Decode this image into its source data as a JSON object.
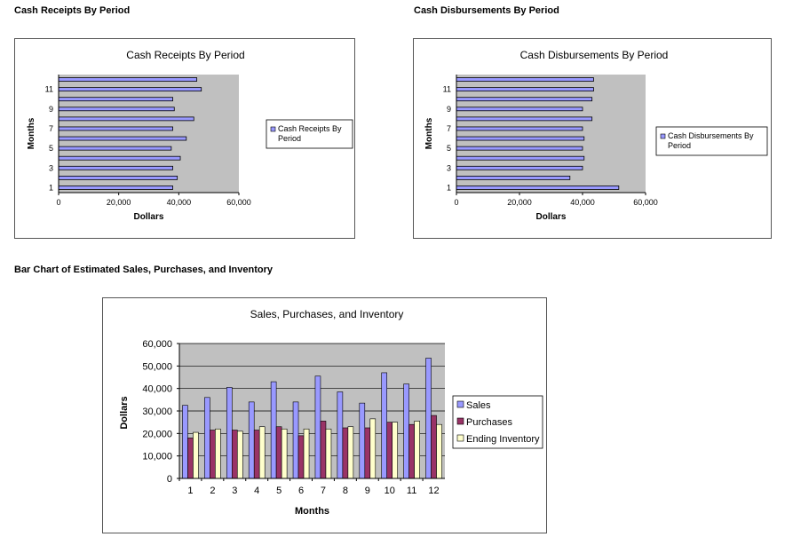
{
  "headings": {
    "receipts": "Cash Receipts By Period",
    "disbursements": "Cash Disbursements By Period",
    "sales": "Bar Chart of Estimated Sales, Purchases, and Inventory"
  },
  "colors": {
    "plot_gray": "#c0c0c0",
    "sales": "#9999ff",
    "purchases": "#993366",
    "inventory": "#ffffcc"
  },
  "chart_data": [
    {
      "id": "receipts",
      "type": "bar",
      "orientation": "horizontal",
      "title": "Cash Receipts By Period",
      "xlabel": "Dollars",
      "ylabel": "Months",
      "xlim": [
        0,
        60000
      ],
      "x_ticks": [
        "0",
        "20,000",
        "40,000",
        "60,000"
      ],
      "y_ticks": [
        "1",
        "3",
        "5",
        "7",
        "9",
        "11"
      ],
      "categories": [
        "1",
        "2",
        "3",
        "4",
        "5",
        "6",
        "7",
        "8",
        "9",
        "10",
        "11",
        "12"
      ],
      "series": [
        {
          "name": "Cash Receipts By Period",
          "color": "#9999ff",
          "values": [
            38000,
            39500,
            38000,
            40500,
            37500,
            42500,
            38000,
            45000,
            38500,
            38000,
            47500,
            46000
          ]
        }
      ],
      "legend": "right",
      "grid": false
    },
    {
      "id": "disbursements",
      "type": "bar",
      "orientation": "horizontal",
      "title": "Cash Disbursements By Period",
      "xlabel": "Dollars",
      "ylabel": "Months",
      "xlim": [
        0,
        60000
      ],
      "x_ticks": [
        "0",
        "20,000",
        "40,000",
        "60,000"
      ],
      "y_ticks": [
        "1",
        "3",
        "5",
        "7",
        "9",
        "11"
      ],
      "categories": [
        "1",
        "2",
        "3",
        "4",
        "5",
        "6",
        "7",
        "8",
        "9",
        "10",
        "11",
        "12"
      ],
      "series": [
        {
          "name": "Cash Disbursements By Period",
          "color": "#9999ff",
          "values": [
            51500,
            36000,
            40000,
            40500,
            40000,
            40500,
            40000,
            43000,
            40000,
            43000,
            43500,
            43500
          ]
        }
      ],
      "legend": "right",
      "grid": false
    },
    {
      "id": "sales",
      "type": "bar",
      "orientation": "vertical",
      "title": "Sales, Purchases, and Inventory",
      "xlabel": "Months",
      "ylabel": "Dollars",
      "ylim": [
        0,
        60000
      ],
      "y_ticks": [
        "0",
        "10,000",
        "20,000",
        "30,000",
        "40,000",
        "50,000",
        "60,000"
      ],
      "categories": [
        "1",
        "2",
        "3",
        "4",
        "5",
        "6",
        "7",
        "8",
        "9",
        "10",
        "11",
        "12"
      ],
      "series": [
        {
          "name": "Sales",
          "color": "#9999ff",
          "values": [
            32500,
            36000,
            40500,
            34000,
            43000,
            34000,
            45500,
            38500,
            33500,
            47000,
            42000,
            53500
          ]
        },
        {
          "name": "Purchases",
          "color": "#993366",
          "values": [
            18000,
            21500,
            21500,
            21500,
            23000,
            19000,
            25500,
            22500,
            22500,
            25000,
            24000,
            28000
          ]
        },
        {
          "name": "Ending Inventory",
          "color": "#ffffcc",
          "values": [
            20500,
            22000,
            21000,
            23000,
            22000,
            22000,
            22000,
            23000,
            26500,
            25000,
            25500,
            24000
          ]
        }
      ],
      "legend": "right",
      "grid": true
    }
  ]
}
